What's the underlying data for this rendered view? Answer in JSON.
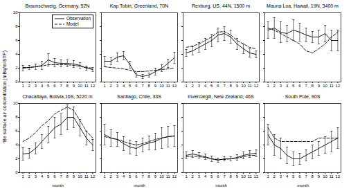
{
  "chart_data": [
    {
      "type": "line",
      "title": "Braunschweig, Germany, 52N",
      "x": [
        1,
        2,
        3,
        4,
        5,
        6,
        7,
        8,
        9,
        10,
        11,
        12
      ],
      "xlim": [
        0.5,
        12.5
      ],
      "xticks": [
        1,
        2,
        3,
        4,
        5,
        6,
        7,
        8,
        9,
        10,
        11,
        12
      ],
      "ylim": [
        0,
        10
      ],
      "yticks": [
        0,
        2,
        4,
        6,
        8,
        10
      ],
      "ylabel": "⁷Be surface air concentration (mBq/m³STP)",
      "legend": "upper right",
      "series": [
        {
          "name": "Observation",
          "color": "black",
          "line_style": "solid",
          "values": [
            2.0,
            2.1,
            2.2,
            2.4,
            3.2,
            2.8,
            2.7,
            2.7,
            2.6,
            2.4,
            2.0,
            1.8
          ],
          "errors": [
            0.4,
            0.3,
            0.4,
            0.6,
            0.9,
            0.6,
            0.5,
            0.5,
            0.5,
            0.4,
            0.3,
            0.3
          ]
        },
        {
          "name": "Model",
          "color": "black",
          "line_style": "dashed",
          "values": [
            2.1,
            2.1,
            2.2,
            2.3,
            2.5,
            2.5,
            2.5,
            2.5,
            2.4,
            2.3,
            2.1,
            2.0
          ]
        }
      ]
    },
    {
      "type": "line",
      "title": "Kap Tobin, Greenland, 70N",
      "x": [
        1,
        2,
        3,
        4,
        5,
        6,
        7,
        8,
        9,
        10,
        11,
        12
      ],
      "xlim": [
        0.5,
        12.5
      ],
      "xticks": [
        1,
        2,
        3,
        4,
        5,
        6,
        7,
        8,
        9,
        10,
        11,
        12
      ],
      "ylim": [
        0,
        10
      ],
      "yticks": [
        0,
        2,
        4,
        6,
        8,
        10
      ],
      "tick_labels": "x",
      "series": [
        {
          "name": "Observation",
          "color": "black",
          "line_style": "solid",
          "values": [
            3.0,
            3.0,
            3.6,
            3.8,
            2.5,
            1.0,
            0.8,
            1.0,
            1.5,
            2.0,
            2.7,
            3.5
          ],
          "errors": [
            0.7,
            0.5,
            0.6,
            0.6,
            0.5,
            0.3,
            0.3,
            0.3,
            0.5,
            0.5,
            0.6,
            0.8
          ]
        },
        {
          "name": "Model",
          "color": "black",
          "line_style": "dashed",
          "values": [
            2.2,
            2.1,
            2.0,
            1.9,
            1.7,
            1.5,
            1.5,
            1.6,
            1.7,
            1.8,
            1.9,
            2.0
          ]
        }
      ]
    },
    {
      "type": "line",
      "title": "Rexburg, US, 44N, 1500 m",
      "x": [
        1,
        2,
        3,
        4,
        5,
        6,
        7,
        8,
        9,
        10,
        11,
        12
      ],
      "xlim": [
        0.5,
        12.5
      ],
      "xticks": [
        1,
        2,
        3,
        4,
        5,
        6,
        7,
        8,
        9,
        10,
        11,
        12
      ],
      "ylim": [
        0,
        10
      ],
      "yticks": [
        0,
        2,
        4,
        6,
        8,
        10
      ],
      "tick_labels": "x",
      "series": [
        {
          "name": "Observation",
          "color": "black",
          "line_style": "solid",
          "values": [
            4.2,
            4.5,
            5.0,
            5.5,
            6.0,
            6.8,
            7.0,
            6.5,
            5.5,
            4.8,
            4.2,
            4.0
          ],
          "errors": [
            0.5,
            0.6,
            0.7,
            0.8,
            0.9,
            1.0,
            1.0,
            0.9,
            0.8,
            0.7,
            0.6,
            0.5
          ]
        },
        {
          "name": "Model",
          "color": "black",
          "line_style": "dashed",
          "values": [
            5.0,
            5.2,
            5.5,
            6.0,
            6.5,
            7.2,
            7.3,
            6.8,
            6.0,
            5.5,
            5.0,
            4.8
          ]
        }
      ]
    },
    {
      "type": "line",
      "title": "Mauna Loa, Hawaii, 19N, 3400 m",
      "x": [
        1,
        2,
        3,
        4,
        5,
        6,
        7,
        8,
        9,
        10,
        11,
        12
      ],
      "xlim": [
        0.5,
        12.5
      ],
      "xticks": [
        1,
        2,
        3,
        4,
        5,
        6,
        7,
        8,
        9,
        10,
        11,
        12
      ],
      "ylim": [
        0,
        10
      ],
      "yticks": [
        0,
        2,
        4,
        6,
        8,
        10
      ],
      "tick_labels": "x",
      "series": [
        {
          "name": "Observation",
          "color": "black",
          "line_style": "solid",
          "values": [
            7.5,
            7.8,
            7.2,
            7.0,
            7.5,
            7.2,
            6.8,
            6.5,
            6.5,
            7.0,
            6.0,
            6.0
          ],
          "errors": [
            1.2,
            1.5,
            1.5,
            1.2,
            1.5,
            1.3,
            1.0,
            0.8,
            1.0,
            1.2,
            1.5,
            1.5
          ]
        },
        {
          "name": "Model",
          "color": "black",
          "line_style": "dashed",
          "values": [
            7.8,
            7.5,
            7.0,
            6.5,
            6.0,
            5.5,
            4.5,
            4.2,
            4.8,
            5.5,
            6.5,
            7.2
          ]
        }
      ]
    },
    {
      "type": "line",
      "title": "Chacaltaya, Bolivia,16S, 5220 m",
      "x": [
        1,
        2,
        3,
        4,
        5,
        6,
        7,
        8,
        9,
        10,
        11,
        12
      ],
      "xlim": [
        0.5,
        12.5
      ],
      "xticks": [
        1,
        2,
        3,
        4,
        5,
        6,
        7,
        8,
        9,
        10,
        11,
        12
      ],
      "ylim": [
        0,
        10
      ],
      "yticks": [
        0,
        2,
        4,
        6,
        8,
        10
      ],
      "xlabel": "month",
      "series": [
        {
          "name": "Observation",
          "color": "black",
          "line_style": "solid",
          "values": [
            2.7,
            2.8,
            3.5,
            4.5,
            5.5,
            6.5,
            7.0,
            8.0,
            8.0,
            6.5,
            5.0,
            4.0
          ],
          "errors": [
            0.9,
            0.7,
            0.8,
            1.0,
            1.2,
            1.5,
            1.5,
            1.8,
            1.5,
            1.2,
            1.0,
            0.8
          ]
        },
        {
          "name": "Model",
          "color": "black",
          "line_style": "dashed",
          "values": [
            4.5,
            5.0,
            5.8,
            6.8,
            7.5,
            8.5,
            9.0,
            9.5,
            9.0,
            7.5,
            6.0,
            5.0
          ]
        }
      ]
    },
    {
      "type": "line",
      "title": "Santiago, Chile, 33S",
      "x": [
        1,
        2,
        3,
        4,
        5,
        6,
        7,
        8,
        9,
        10,
        11,
        12
      ],
      "xlim": [
        0.5,
        12.5
      ],
      "xticks": [
        1,
        2,
        3,
        4,
        5,
        6,
        7,
        8,
        9,
        10,
        11,
        12
      ],
      "ylim": [
        0,
        10
      ],
      "yticks": [
        0,
        2,
        4,
        6,
        8,
        10
      ],
      "xlabel": "month",
      "tick_labels": "x",
      "series": [
        {
          "name": "Observation",
          "color": "black",
          "line_style": "solid",
          "values": [
            5.5,
            5.0,
            4.8,
            4.2,
            3.7,
            3.5,
            4.0,
            4.3,
            4.5,
            5.0,
            5.2,
            5.3
          ],
          "errors": [
            1.5,
            1.2,
            1.0,
            1.0,
            1.0,
            1.0,
            1.0,
            1.0,
            1.2,
            1.5,
            1.5,
            1.5
          ]
        },
        {
          "name": "Model",
          "color": "black",
          "line_style": "dashed",
          "values": [
            5.2,
            5.0,
            4.8,
            4.5,
            4.2,
            4.0,
            4.2,
            4.5,
            4.8,
            5.0,
            5.2,
            5.3
          ]
        }
      ]
    },
    {
      "type": "line",
      "title": "Invercargill, New Zealand, 46S",
      "x": [
        1,
        2,
        3,
        4,
        5,
        6,
        7,
        8,
        9,
        10,
        11,
        12
      ],
      "xlim": [
        0.5,
        12.5
      ],
      "xticks": [
        1,
        2,
        3,
        4,
        5,
        6,
        7,
        8,
        9,
        10,
        11,
        12
      ],
      "ylim": [
        0,
        10
      ],
      "yticks": [
        0,
        2,
        4,
        6,
        8,
        10
      ],
      "xlabel": "month",
      "tick_labels": "x",
      "series": [
        {
          "name": "Observation",
          "color": "black",
          "line_style": "solid",
          "values": [
            2.5,
            2.7,
            2.5,
            2.3,
            2.0,
            1.8,
            2.0,
            2.0,
            2.2,
            2.5,
            2.7,
            2.8
          ],
          "errors": [
            0.5,
            0.5,
            0.4,
            0.4,
            0.4,
            0.3,
            0.3,
            0.3,
            0.4,
            0.5,
            0.5,
            0.5
          ]
        },
        {
          "name": "Model",
          "color": "black",
          "line_style": "dashed",
          "values": [
            2.3,
            2.4,
            2.3,
            2.2,
            2.0,
            1.9,
            1.9,
            2.0,
            2.1,
            2.3,
            2.5,
            2.5
          ]
        }
      ]
    },
    {
      "type": "line",
      "title": "South Pole, 90S",
      "x": [
        1,
        2,
        3,
        4,
        5,
        6,
        7,
        8,
        9,
        10,
        11,
        12
      ],
      "xlim": [
        0.5,
        12.5
      ],
      "xticks": [
        1,
        2,
        3,
        4,
        5,
        6,
        7,
        8,
        9,
        10,
        11,
        12
      ],
      "ylim": [
        0,
        10
      ],
      "yticks": [
        0,
        2,
        4,
        6,
        8,
        10
      ],
      "xlabel": "month",
      "tick_labels": "x",
      "series": [
        {
          "name": "Observation",
          "color": "black",
          "line_style": "solid",
          "values": [
            5.5,
            4.0,
            3.5,
            2.5,
            2.0,
            2.0,
            2.5,
            3.0,
            3.5,
            4.0,
            4.5,
            5.0
          ],
          "errors": [
            1.5,
            1.5,
            1.5,
            1.2,
            1.0,
            0.8,
            0.8,
            1.0,
            1.0,
            1.2,
            1.5,
            1.5
          ]
        },
        {
          "name": "Model",
          "color": "black",
          "line_style": "dashed",
          "values": [
            6.5,
            5.0,
            4.5,
            4.5,
            4.5,
            4.5,
            4.5,
            4.5,
            5.0,
            5.0,
            5.0,
            5.0
          ]
        }
      ]
    }
  ]
}
